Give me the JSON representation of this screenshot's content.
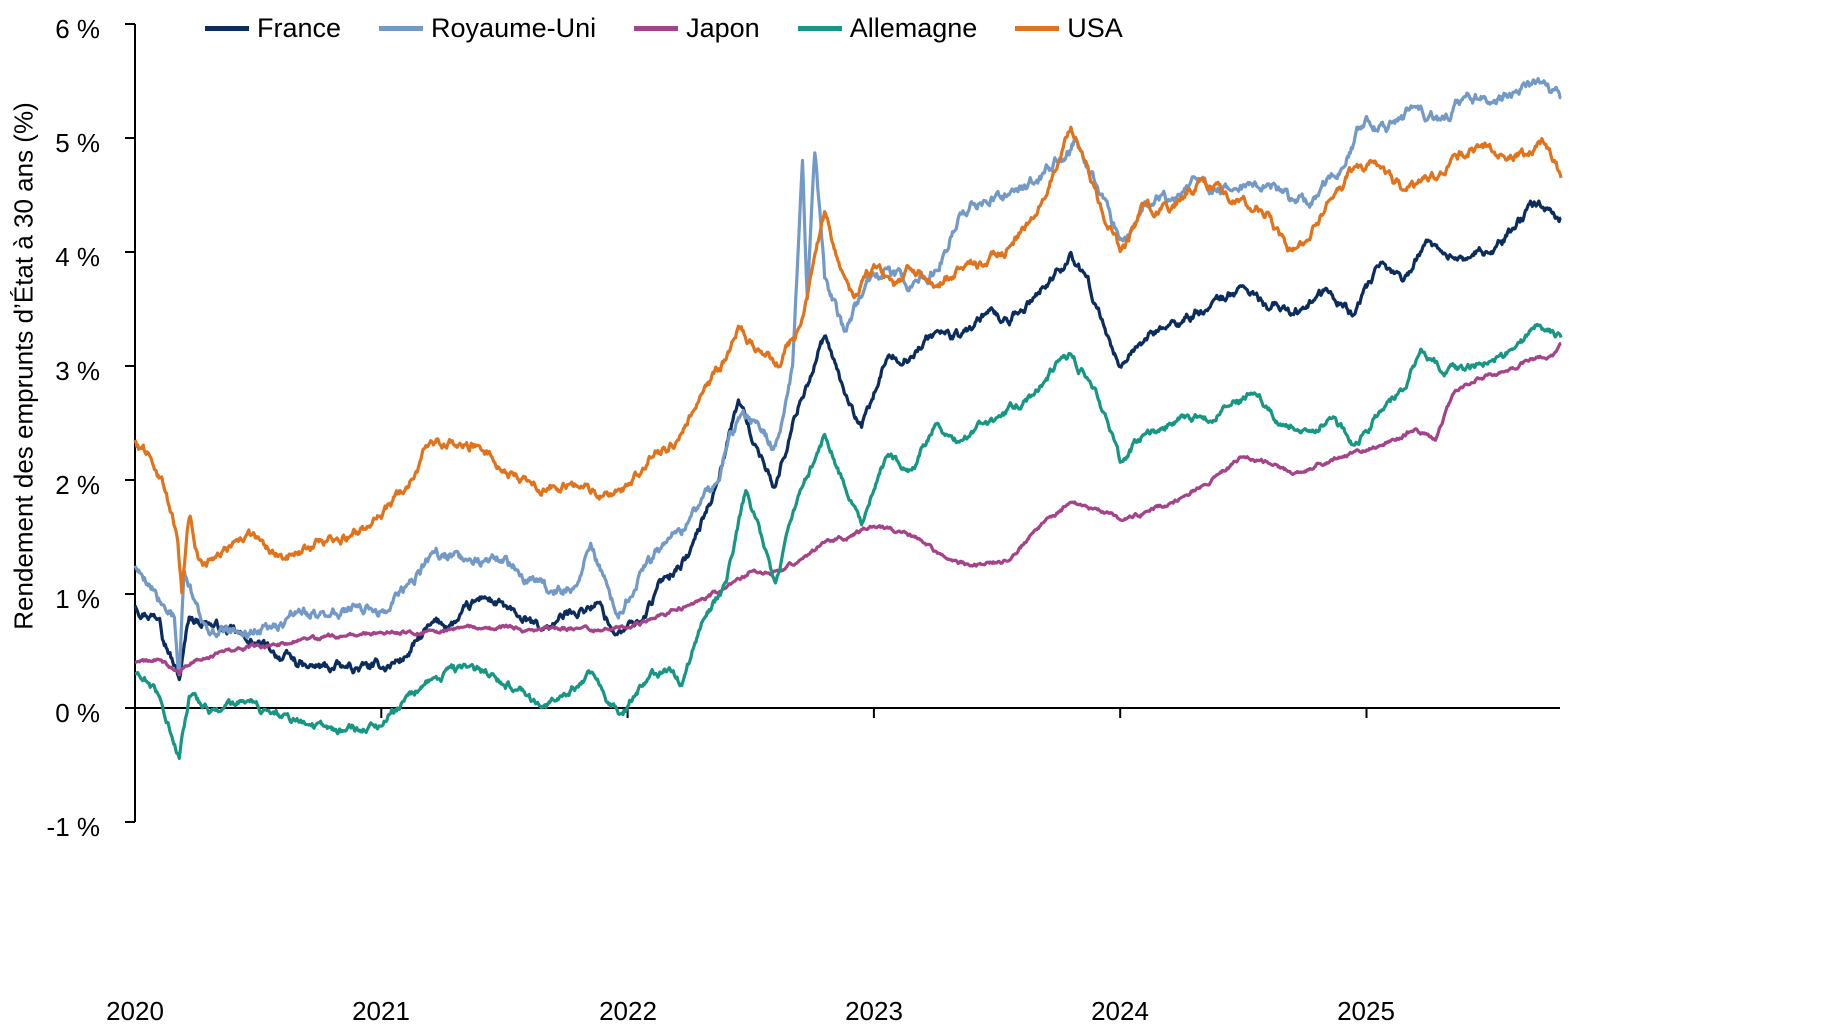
{
  "chart_data": {
    "type": "line",
    "title": "",
    "xlabel": "",
    "ylabel": "Rendement des emprunts d’État à 30 ans (%)",
    "ylim": [
      -1,
      6
    ],
    "xlim": [
      2020.0,
      2025.79
    ],
    "yticks": [
      6,
      5,
      4,
      3,
      2,
      1,
      0,
      -1
    ],
    "ytick_labels": [
      "6 %",
      "5 %",
      "4 %",
      "3 %",
      "2 %",
      "1 %",
      "0 %",
      "-1 %"
    ],
    "xticks": [
      2020,
      2021,
      2022,
      2023,
      2024,
      2025
    ],
    "xtick_labels": [
      "2020",
      "2021",
      "2022",
      "2023",
      "2024",
      "2025"
    ],
    "grid": false,
    "legend_position": "top",
    "series": [
      {
        "name": "France",
        "color": "#0b2d5e",
        "noise": 0.06,
        "points": [
          [
            2020.0,
            0.9
          ],
          [
            2020.1,
            0.8
          ],
          [
            2020.18,
            0.25
          ],
          [
            2020.22,
            0.8
          ],
          [
            2020.3,
            0.75
          ],
          [
            2020.45,
            0.6
          ],
          [
            2020.55,
            0.5
          ],
          [
            2020.7,
            0.35
          ],
          [
            2020.85,
            0.35
          ],
          [
            2021.0,
            0.35
          ],
          [
            2021.1,
            0.45
          ],
          [
            2021.2,
            0.72
          ],
          [
            2021.3,
            0.75
          ],
          [
            2021.42,
            0.98
          ],
          [
            2021.55,
            0.8
          ],
          [
            2021.65,
            0.68
          ],
          [
            2021.78,
            0.85
          ],
          [
            2021.88,
            0.92
          ],
          [
            2021.95,
            0.65
          ],
          [
            2022.05,
            0.75
          ],
          [
            2022.15,
            1.15
          ],
          [
            2022.25,
            1.35
          ],
          [
            2022.35,
            1.9
          ],
          [
            2022.45,
            2.7
          ],
          [
            2022.52,
            2.3
          ],
          [
            2022.6,
            1.95
          ],
          [
            2022.7,
            2.7
          ],
          [
            2022.8,
            3.25
          ],
          [
            2022.88,
            2.75
          ],
          [
            2022.95,
            2.45
          ],
          [
            2023.05,
            3.05
          ],
          [
            2023.15,
            3.1
          ],
          [
            2023.25,
            3.3
          ],
          [
            2023.35,
            3.25
          ],
          [
            2023.45,
            3.45
          ],
          [
            2023.55,
            3.35
          ],
          [
            2023.65,
            3.6
          ],
          [
            2023.75,
            3.85
          ],
          [
            2023.8,
            4.0
          ],
          [
            2023.9,
            3.55
          ],
          [
            2024.0,
            3.0
          ],
          [
            2024.1,
            3.25
          ],
          [
            2024.2,
            3.35
          ],
          [
            2024.35,
            3.5
          ],
          [
            2024.5,
            3.7
          ],
          [
            2024.6,
            3.5
          ],
          [
            2024.75,
            3.5
          ],
          [
            2024.85,
            3.65
          ],
          [
            2024.95,
            3.45
          ],
          [
            2025.05,
            3.85
          ],
          [
            2025.15,
            3.75
          ],
          [
            2025.25,
            4.1
          ],
          [
            2025.35,
            3.95
          ],
          [
            2025.5,
            4.0
          ],
          [
            2025.6,
            4.2
          ],
          [
            2025.7,
            4.45
          ],
          [
            2025.75,
            4.35
          ],
          [
            2025.79,
            4.3
          ]
        ]
      },
      {
        "name": "Royaume-Uni",
        "color": "#7399c6",
        "noise": 0.07,
        "points": [
          [
            2020.0,
            1.25
          ],
          [
            2020.08,
            1.05
          ],
          [
            2020.16,
            0.8
          ],
          [
            2020.18,
            0.3
          ],
          [
            2020.2,
            1.2
          ],
          [
            2020.24,
            0.95
          ],
          [
            2020.3,
            0.65
          ],
          [
            2020.42,
            0.65
          ],
          [
            2020.55,
            0.7
          ],
          [
            2020.65,
            0.85
          ],
          [
            2020.78,
            0.8
          ],
          [
            2020.9,
            0.9
          ],
          [
            2021.0,
            0.85
          ],
          [
            2021.1,
            1.05
          ],
          [
            2021.2,
            1.35
          ],
          [
            2021.35,
            1.3
          ],
          [
            2021.45,
            1.35
          ],
          [
            2021.55,
            1.2
          ],
          [
            2021.68,
            1.0
          ],
          [
            2021.78,
            1.05
          ],
          [
            2021.85,
            1.45
          ],
          [
            2021.92,
            1.05
          ],
          [
            2021.97,
            0.85
          ],
          [
            2022.05,
            1.2
          ],
          [
            2022.15,
            1.45
          ],
          [
            2022.25,
            1.65
          ],
          [
            2022.35,
            1.95
          ],
          [
            2022.45,
            2.55
          ],
          [
            2022.52,
            2.5
          ],
          [
            2022.6,
            2.3
          ],
          [
            2022.67,
            3.0
          ],
          [
            2022.71,
            4.8
          ],
          [
            2022.73,
            3.6
          ],
          [
            2022.76,
            4.85
          ],
          [
            2022.8,
            3.75
          ],
          [
            2022.88,
            3.3
          ],
          [
            2022.95,
            3.6
          ],
          [
            2023.05,
            3.85
          ],
          [
            2023.15,
            3.7
          ],
          [
            2023.25,
            3.85
          ],
          [
            2023.35,
            4.35
          ],
          [
            2023.45,
            4.45
          ],
          [
            2023.55,
            4.5
          ],
          [
            2023.65,
            4.6
          ],
          [
            2023.75,
            4.8
          ],
          [
            2023.82,
            5.0
          ],
          [
            2023.9,
            4.6
          ],
          [
            2024.0,
            4.1
          ],
          [
            2024.1,
            4.45
          ],
          [
            2024.2,
            4.45
          ],
          [
            2024.32,
            4.6
          ],
          [
            2024.45,
            4.55
          ],
          [
            2024.6,
            4.6
          ],
          [
            2024.7,
            4.45
          ],
          [
            2024.8,
            4.5
          ],
          [
            2024.9,
            4.75
          ],
          [
            2025.0,
            5.2
          ],
          [
            2025.08,
            5.05
          ],
          [
            2025.2,
            5.25
          ],
          [
            2025.3,
            5.15
          ],
          [
            2025.4,
            5.35
          ],
          [
            2025.5,
            5.3
          ],
          [
            2025.6,
            5.4
          ],
          [
            2025.72,
            5.5
          ],
          [
            2025.79,
            5.35
          ]
        ]
      },
      {
        "name": "Japon",
        "color": "#a4428a",
        "noise": 0.025,
        "points": [
          [
            2020.0,
            0.4
          ],
          [
            2020.1,
            0.42
          ],
          [
            2020.18,
            0.3
          ],
          [
            2020.25,
            0.43
          ],
          [
            2020.4,
            0.5
          ],
          [
            2020.55,
            0.55
          ],
          [
            2020.7,
            0.6
          ],
          [
            2020.85,
            0.63
          ],
          [
            2021.0,
            0.66
          ],
          [
            2021.2,
            0.68
          ],
          [
            2021.4,
            0.7
          ],
          [
            2021.6,
            0.7
          ],
          [
            2021.8,
            0.7
          ],
          [
            2022.0,
            0.7
          ],
          [
            2022.1,
            0.78
          ],
          [
            2022.25,
            0.9
          ],
          [
            2022.4,
            1.05
          ],
          [
            2022.5,
            1.2
          ],
          [
            2022.6,
            1.2
          ],
          [
            2022.7,
            1.3
          ],
          [
            2022.8,
            1.45
          ],
          [
            2022.9,
            1.5
          ],
          [
            2023.0,
            1.6
          ],
          [
            2023.1,
            1.55
          ],
          [
            2023.2,
            1.45
          ],
          [
            2023.3,
            1.3
          ],
          [
            2023.45,
            1.25
          ],
          [
            2023.55,
            1.3
          ],
          [
            2023.65,
            1.55
          ],
          [
            2023.8,
            1.8
          ],
          [
            2023.9,
            1.75
          ],
          [
            2024.0,
            1.65
          ],
          [
            2024.1,
            1.72
          ],
          [
            2024.25,
            1.85
          ],
          [
            2024.4,
            2.05
          ],
          [
            2024.5,
            2.2
          ],
          [
            2024.6,
            2.15
          ],
          [
            2024.7,
            2.05
          ],
          [
            2024.8,
            2.15
          ],
          [
            2024.95,
            2.25
          ],
          [
            2025.05,
            2.3
          ],
          [
            2025.2,
            2.45
          ],
          [
            2025.28,
            2.35
          ],
          [
            2025.35,
            2.75
          ],
          [
            2025.45,
            2.9
          ],
          [
            2025.55,
            2.95
          ],
          [
            2025.65,
            3.05
          ],
          [
            2025.75,
            3.1
          ],
          [
            2025.79,
            3.2
          ]
        ]
      },
      {
        "name": "Allemagne",
        "color": "#169683",
        "noise": 0.05,
        "points": [
          [
            2020.0,
            0.3
          ],
          [
            2020.1,
            0.1
          ],
          [
            2020.18,
            -0.45
          ],
          [
            2020.22,
            0.1
          ],
          [
            2020.3,
            -0.05
          ],
          [
            2020.45,
            0.05
          ],
          [
            2020.55,
            -0.05
          ],
          [
            2020.7,
            -0.15
          ],
          [
            2020.85,
            -0.2
          ],
          [
            2021.0,
            -0.15
          ],
          [
            2021.1,
            0.1
          ],
          [
            2021.2,
            0.25
          ],
          [
            2021.35,
            0.35
          ],
          [
            2021.45,
            0.3
          ],
          [
            2021.55,
            0.15
          ],
          [
            2021.65,
            0.0
          ],
          [
            2021.75,
            0.1
          ],
          [
            2021.85,
            0.3
          ],
          [
            2021.92,
            0.05
          ],
          [
            2021.97,
            -0.05
          ],
          [
            2022.05,
            0.2
          ],
          [
            2022.15,
            0.35
          ],
          [
            2022.22,
            0.2
          ],
          [
            2022.3,
            0.75
          ],
          [
            2022.4,
            1.1
          ],
          [
            2022.48,
            1.9
          ],
          [
            2022.55,
            1.45
          ],
          [
            2022.6,
            1.1
          ],
          [
            2022.7,
            1.9
          ],
          [
            2022.8,
            2.4
          ],
          [
            2022.88,
            1.95
          ],
          [
            2022.95,
            1.6
          ],
          [
            2023.05,
            2.2
          ],
          [
            2023.15,
            2.1
          ],
          [
            2023.25,
            2.5
          ],
          [
            2023.35,
            2.35
          ],
          [
            2023.5,
            2.55
          ],
          [
            2023.65,
            2.75
          ],
          [
            2023.75,
            3.05
          ],
          [
            2023.8,
            3.1
          ],
          [
            2023.9,
            2.8
          ],
          [
            2024.0,
            2.15
          ],
          [
            2024.1,
            2.4
          ],
          [
            2024.2,
            2.5
          ],
          [
            2024.32,
            2.55
          ],
          [
            2024.45,
            2.65
          ],
          [
            2024.55,
            2.75
          ],
          [
            2024.65,
            2.5
          ],
          [
            2024.75,
            2.45
          ],
          [
            2024.85,
            2.55
          ],
          [
            2024.95,
            2.3
          ],
          [
            2025.05,
            2.6
          ],
          [
            2025.15,
            2.8
          ],
          [
            2025.22,
            3.15
          ],
          [
            2025.3,
            2.95
          ],
          [
            2025.4,
            2.95
          ],
          [
            2025.5,
            3.05
          ],
          [
            2025.6,
            3.15
          ],
          [
            2025.7,
            3.35
          ],
          [
            2025.79,
            3.25
          ]
        ]
      },
      {
        "name": "USA",
        "color": "#e0731c",
        "noise": 0.06,
        "points": [
          [
            2020.0,
            2.35
          ],
          [
            2020.06,
            2.2
          ],
          [
            2020.12,
            1.9
          ],
          [
            2020.17,
            1.5
          ],
          [
            2020.19,
            1.0
          ],
          [
            2020.22,
            1.65
          ],
          [
            2020.26,
            1.3
          ],
          [
            2020.32,
            1.3
          ],
          [
            2020.42,
            1.45
          ],
          [
            2020.5,
            1.5
          ],
          [
            2020.6,
            1.3
          ],
          [
            2020.7,
            1.4
          ],
          [
            2020.82,
            1.5
          ],
          [
            2020.95,
            1.6
          ],
          [
            2021.0,
            1.65
          ],
          [
            2021.1,
            1.95
          ],
          [
            2021.2,
            2.35
          ],
          [
            2021.3,
            2.3
          ],
          [
            2021.4,
            2.3
          ],
          [
            2021.5,
            2.1
          ],
          [
            2021.6,
            2.0
          ],
          [
            2021.7,
            1.95
          ],
          [
            2021.8,
            1.95
          ],
          [
            2021.9,
            1.85
          ],
          [
            2022.0,
            1.95
          ],
          [
            2022.1,
            2.2
          ],
          [
            2022.2,
            2.35
          ],
          [
            2022.3,
            2.75
          ],
          [
            2022.4,
            3.05
          ],
          [
            2022.45,
            3.35
          ],
          [
            2022.55,
            3.1
          ],
          [
            2022.62,
            3.0
          ],
          [
            2022.7,
            3.35
          ],
          [
            2022.75,
            3.85
          ],
          [
            2022.8,
            4.35
          ],
          [
            2022.85,
            3.95
          ],
          [
            2022.92,
            3.6
          ],
          [
            2023.0,
            3.9
          ],
          [
            2023.08,
            3.7
          ],
          [
            2023.15,
            3.85
          ],
          [
            2023.25,
            3.7
          ],
          [
            2023.35,
            3.85
          ],
          [
            2023.45,
            3.9
          ],
          [
            2023.55,
            4.05
          ],
          [
            2023.65,
            4.3
          ],
          [
            2023.75,
            4.8
          ],
          [
            2023.8,
            5.1
          ],
          [
            2023.88,
            4.6
          ],
          [
            2024.0,
            4.0
          ],
          [
            2024.1,
            4.4
          ],
          [
            2024.2,
            4.35
          ],
          [
            2024.32,
            4.65
          ],
          [
            2024.42,
            4.5
          ],
          [
            2024.5,
            4.5
          ],
          [
            2024.6,
            4.35
          ],
          [
            2024.68,
            4.0
          ],
          [
            2024.75,
            4.1
          ],
          [
            2024.85,
            4.45
          ],
          [
            2024.95,
            4.75
          ],
          [
            2025.05,
            4.75
          ],
          [
            2025.15,
            4.55
          ],
          [
            2025.25,
            4.6
          ],
          [
            2025.35,
            4.85
          ],
          [
            2025.45,
            4.95
          ],
          [
            2025.55,
            4.85
          ],
          [
            2025.65,
            4.85
          ],
          [
            2025.72,
            4.95
          ],
          [
            2025.79,
            4.65
          ]
        ]
      }
    ]
  }
}
